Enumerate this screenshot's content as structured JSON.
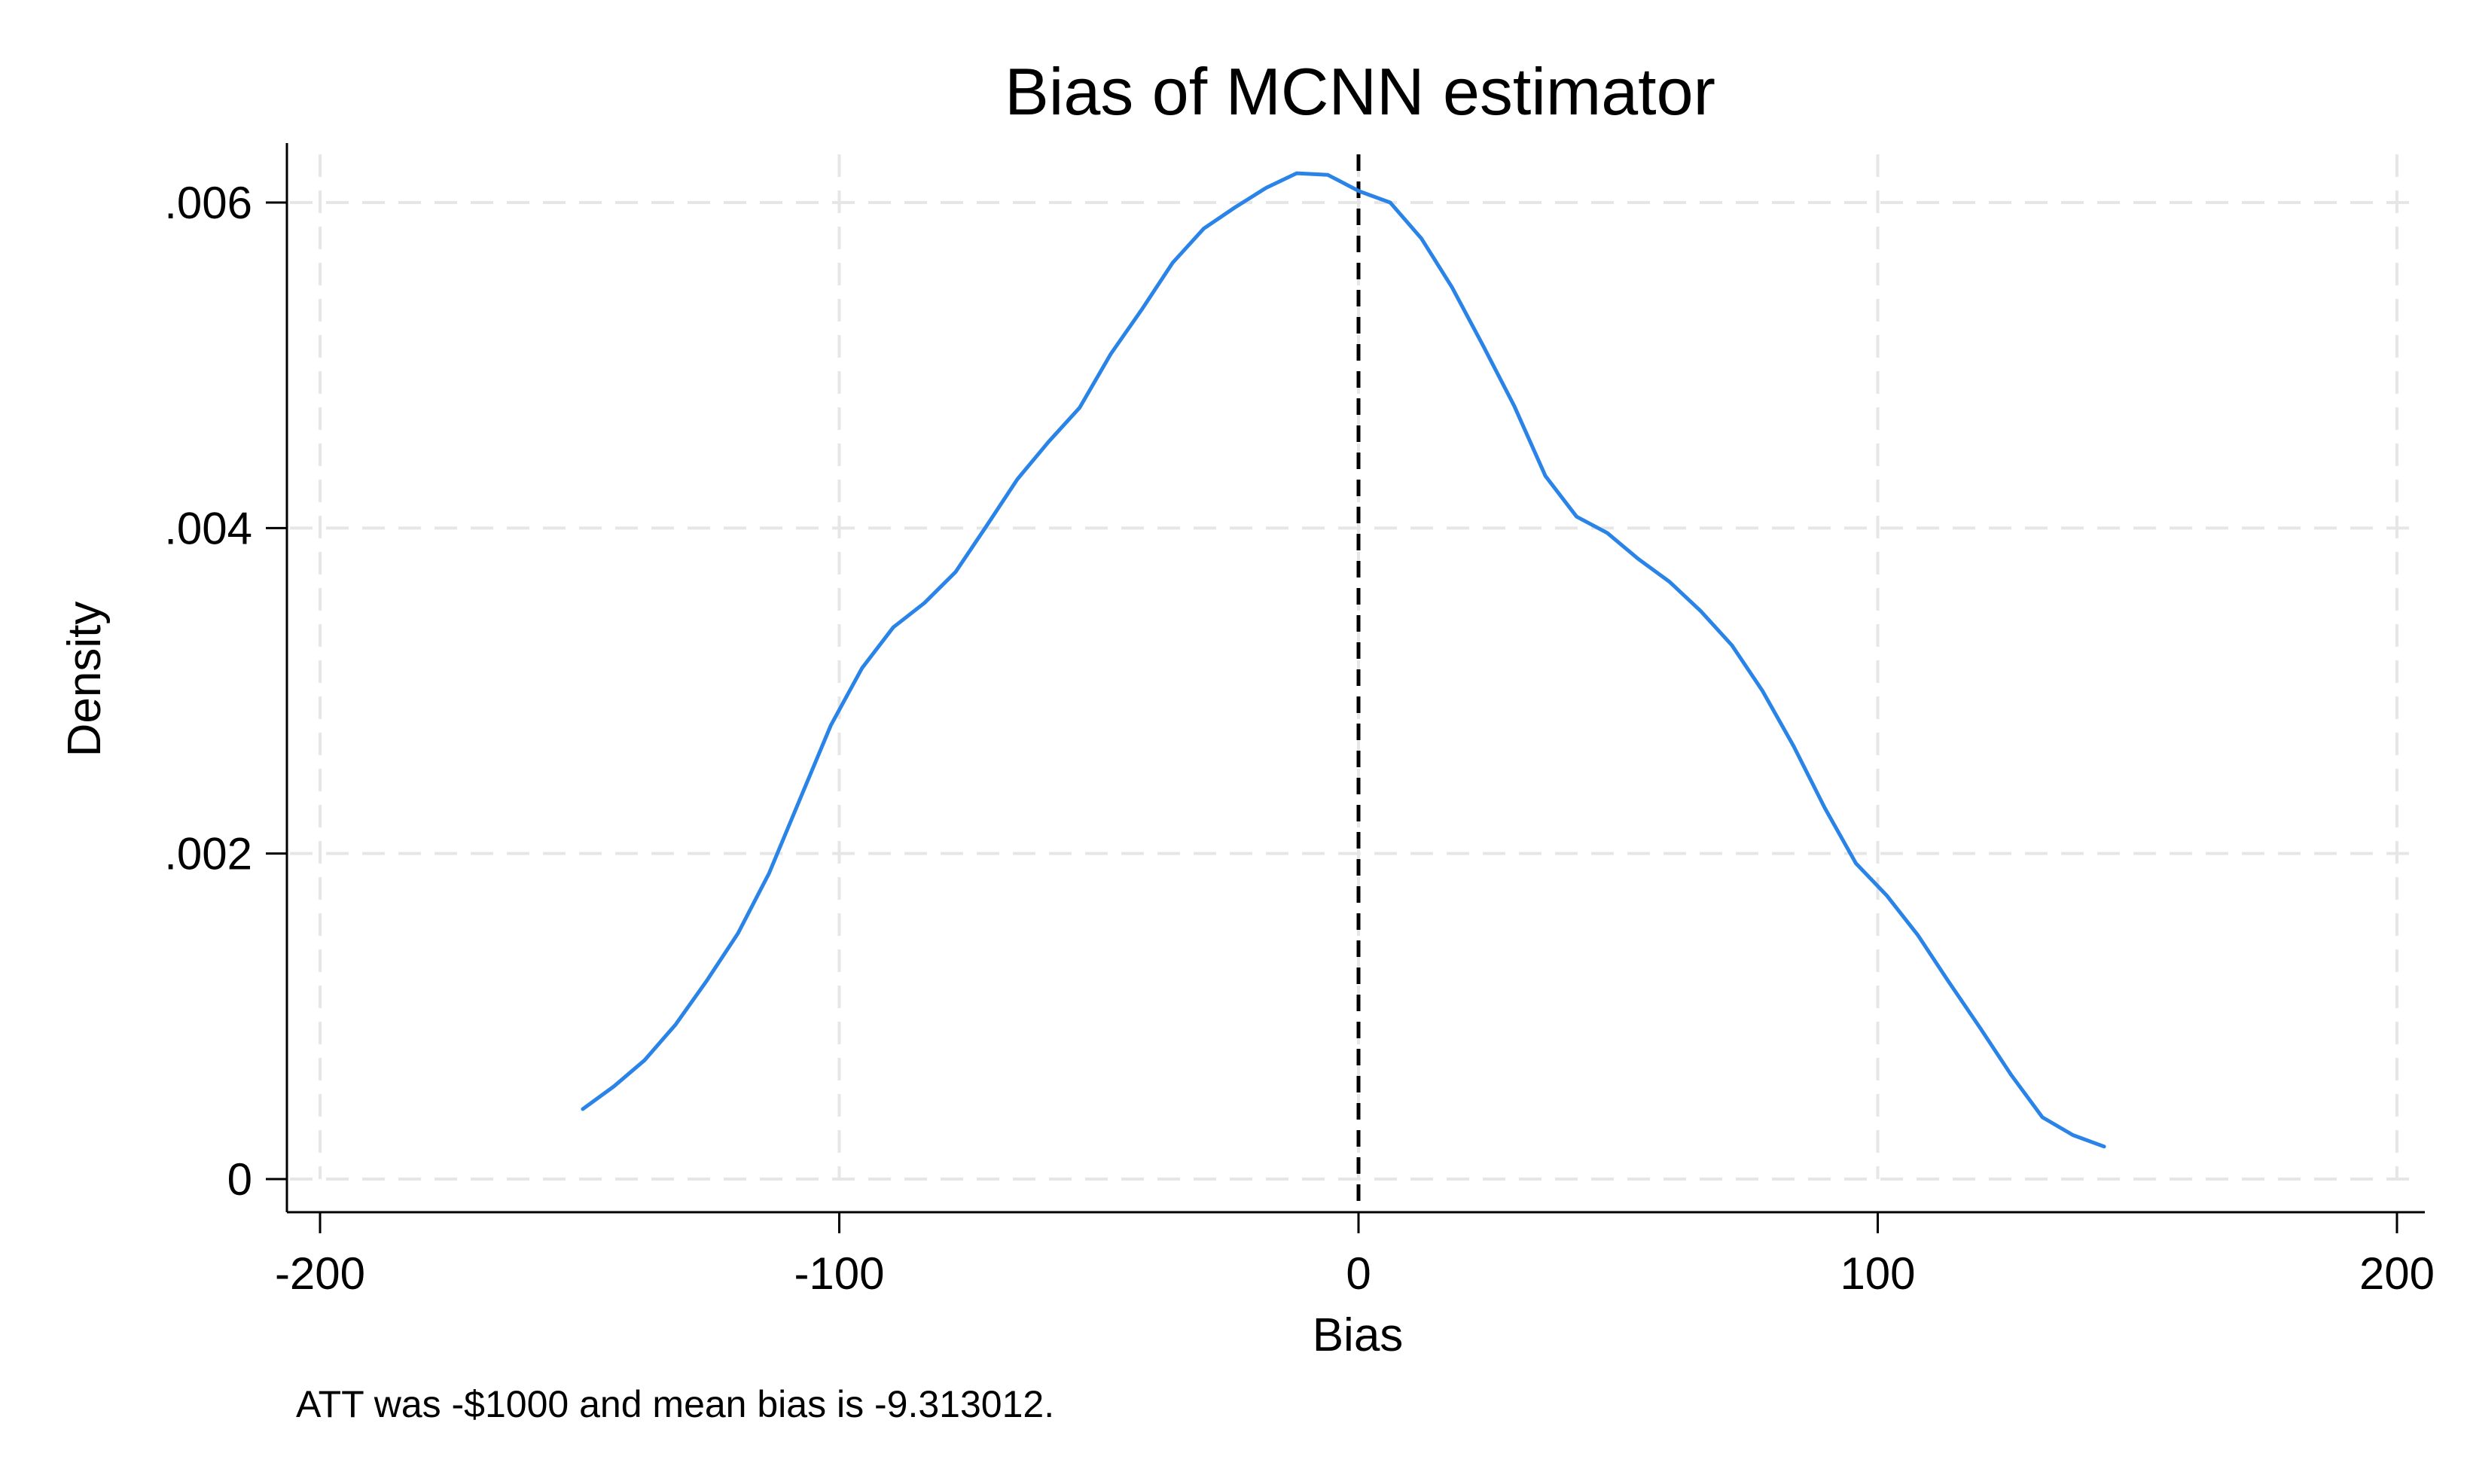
{
  "chart_data": {
    "type": "line",
    "title": "Bias of MCNN estimator",
    "xlabel": "Bias",
    "ylabel": "Density",
    "note": "ATT was -$1000 and mean bias is -9.313012.",
    "xlim": [
      -200,
      200
    ],
    "ylim": [
      0,
      0.0062
    ],
    "x_ticks": [
      -200,
      -100,
      0,
      100,
      200
    ],
    "x_tick_labels": [
      "-200",
      "-100",
      "0",
      "100",
      "200"
    ],
    "y_ticks": [
      0,
      0.002,
      0.004,
      0.006
    ],
    "y_tick_labels": [
      "0",
      ".002",
      ".004",
      ".006"
    ],
    "grid": true,
    "reference_line": {
      "x": 0,
      "style": "dashed",
      "color": "#000000"
    },
    "series": [
      {
        "color": "#2a84e8",
        "x": [
          -149.4,
          -143.4,
          -137.5,
          -131.5,
          -125.5,
          -119.5,
          -113.5,
          -107.5,
          -101.6,
          -95.6,
          -89.6,
          -83.6,
          -77.6,
          -71.7,
          -65.7,
          -59.7,
          -53.7,
          -47.7,
          -41.8,
          -35.8,
          -29.8,
          -23.8,
          -17.8,
          -11.9,
          -5.9,
          0.1,
          6.1,
          12.1,
          18.0,
          24.0,
          30.0,
          36.0,
          42.0,
          47.9,
          53.9,
          59.9,
          65.9,
          71.9,
          77.8,
          83.8,
          89.8,
          95.8,
          101.8,
          107.7,
          113.7,
          119.7,
          125.7,
          131.7,
          137.6,
          143.6
        ],
        "y": [
          0.00043,
          0.00057,
          0.00073,
          0.00095,
          0.00122,
          0.00151,
          0.00188,
          0.00234,
          0.00279,
          0.00314,
          0.00339,
          0.00354,
          0.00373,
          0.00401,
          0.0043,
          0.00453,
          0.00474,
          0.00507,
          0.00534,
          0.00563,
          0.00584,
          0.00597,
          0.00609,
          0.00618,
          0.00617,
          0.00607,
          0.006,
          0.00578,
          0.00548,
          0.00512,
          0.00475,
          0.00432,
          0.00407,
          0.00397,
          0.00381,
          0.00367,
          0.00349,
          0.00328,
          0.003,
          0.00266,
          0.00228,
          0.00194,
          0.00174,
          0.0015,
          0.00121,
          0.00093,
          0.00064,
          0.00038,
          0.00027,
          0.0002
        ]
      }
    ]
  }
}
